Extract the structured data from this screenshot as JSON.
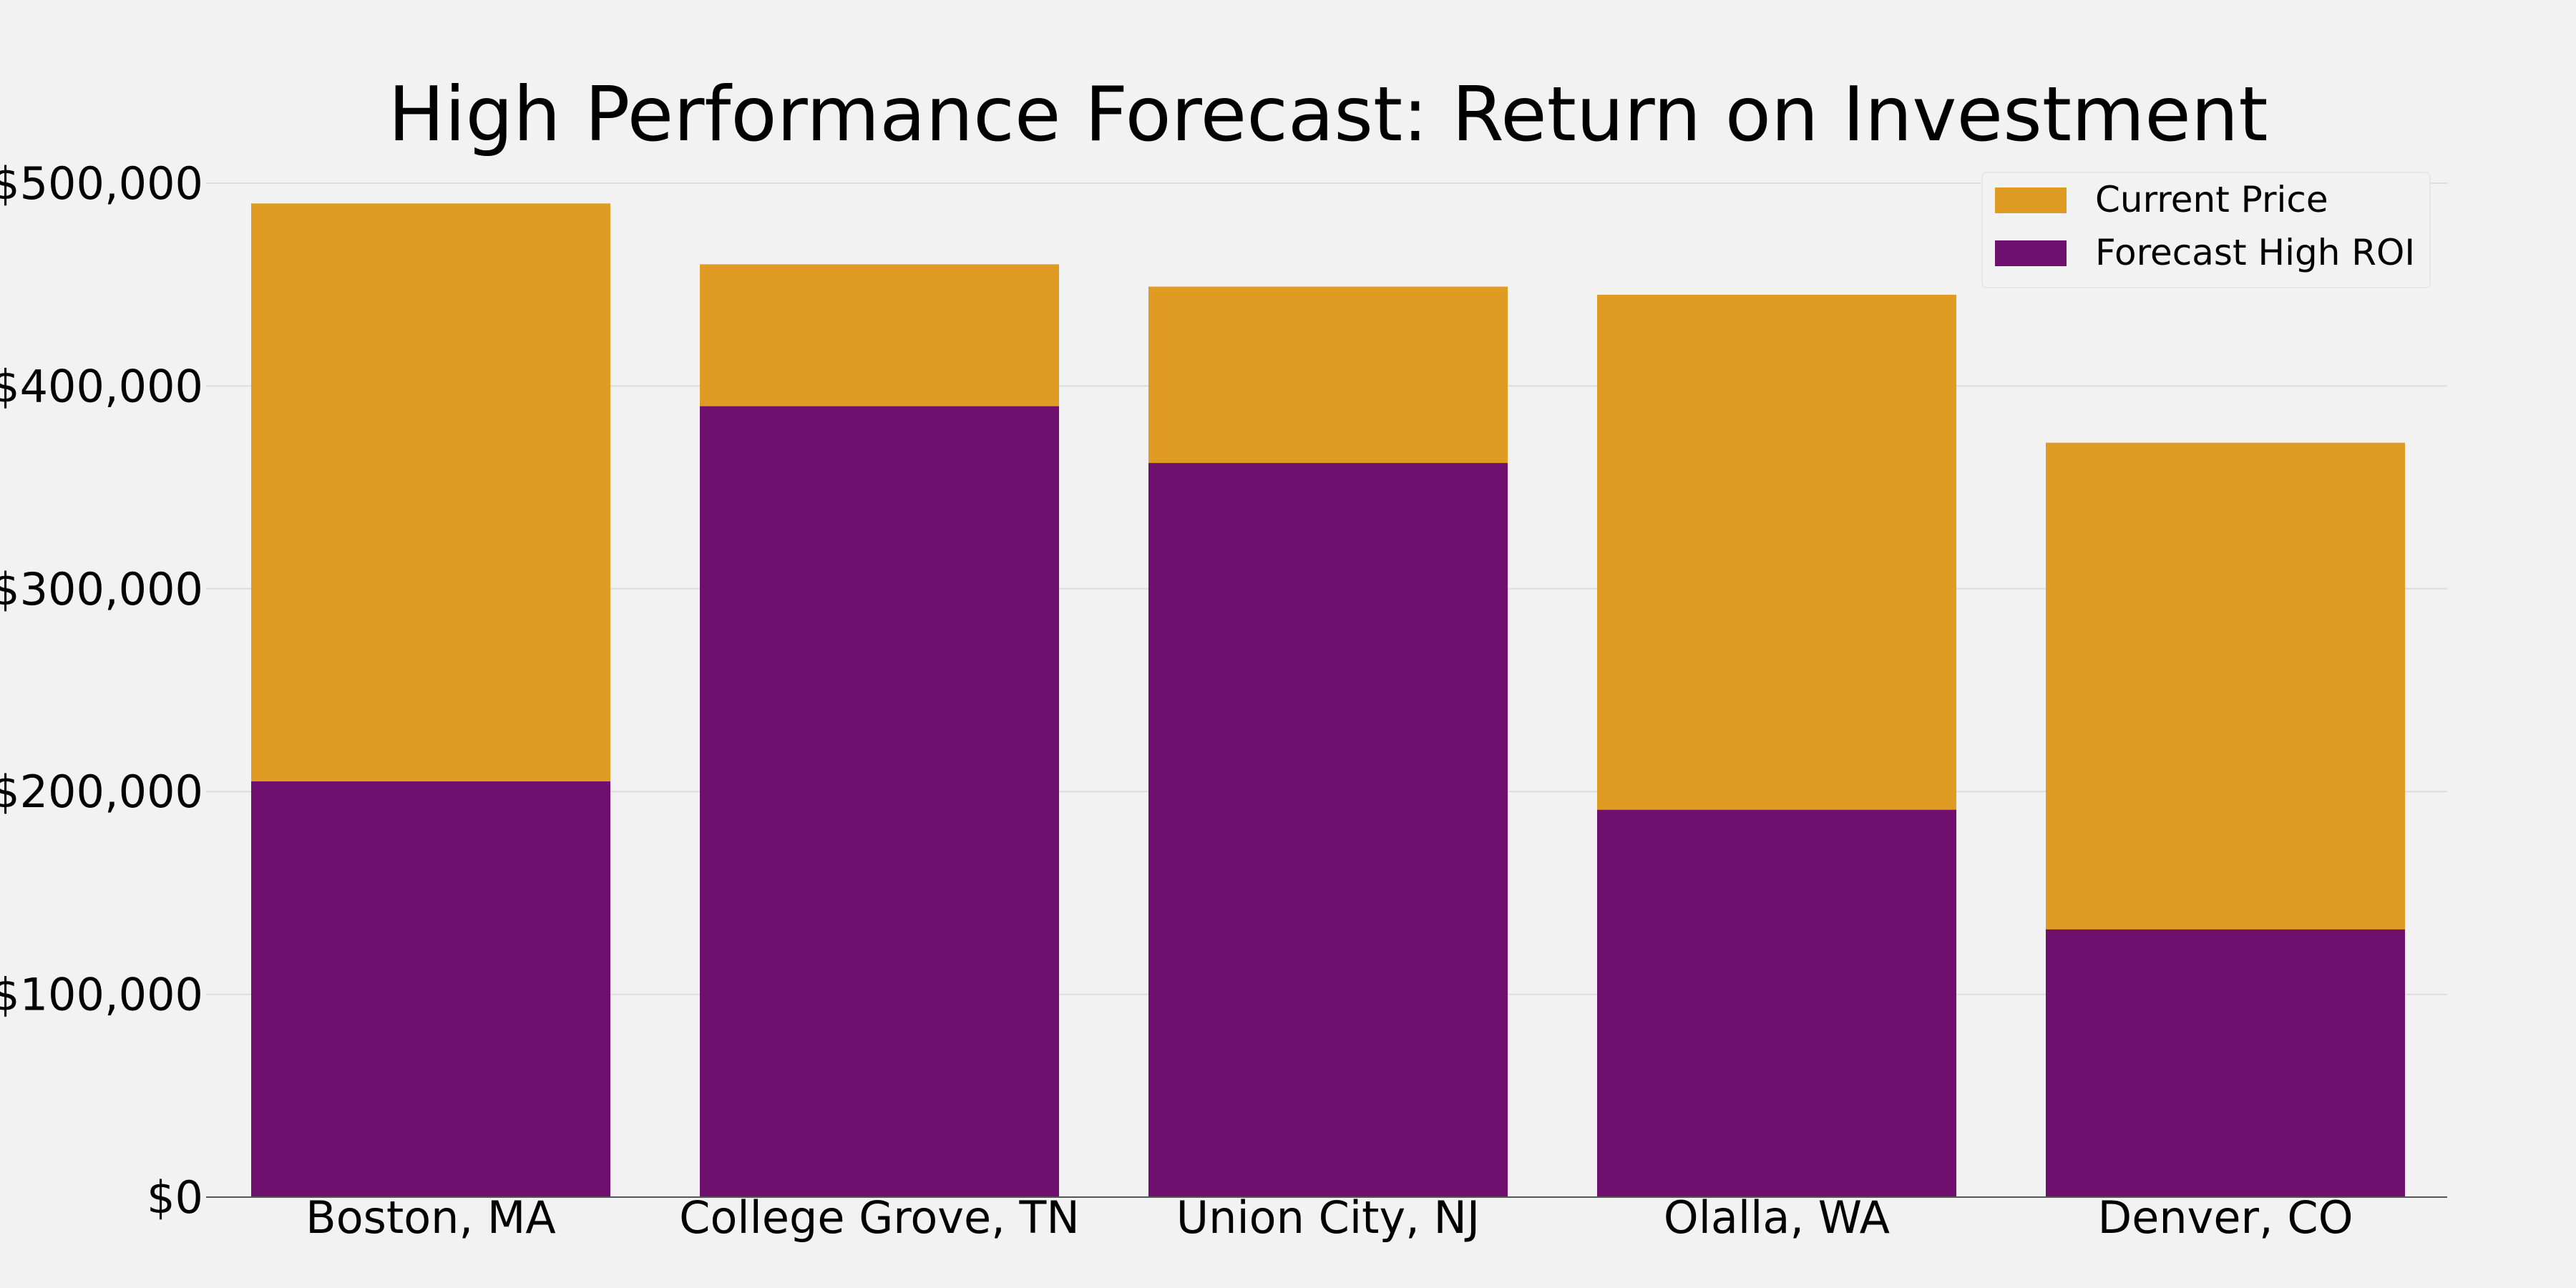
{
  "chart_data": {
    "type": "bar",
    "stacked": false,
    "title": "High Performance Forecast: Return on Investment",
    "xlabel": "",
    "ylabel": "",
    "categories": [
      "Boston, MA",
      "College Grove, TN",
      "Union City, NJ",
      "Olalla, WA",
      "Denver, CO"
    ],
    "series": [
      {
        "name": "Current Price",
        "color": "#e09b22",
        "values": [
          490000,
          460000,
          449000,
          445000,
          372000
        ]
      },
      {
        "name": "Forecast High ROI",
        "color": "#6f106e",
        "values": [
          205000,
          390000,
          362000,
          191000,
          132000
        ]
      }
    ],
    "ylim": [
      0,
      500000
    ],
    "yticks": [
      0,
      100000,
      200000,
      300000,
      400000,
      500000
    ],
    "ytick_labels": [
      "$0",
      "$100,000",
      "$200,000",
      "$300,000",
      "$400,000",
      "$500,000"
    ],
    "grid": true,
    "legend_position": "top-right",
    "background_color": "#f2f2f2",
    "grid_color": "#dcdcdc"
  }
}
